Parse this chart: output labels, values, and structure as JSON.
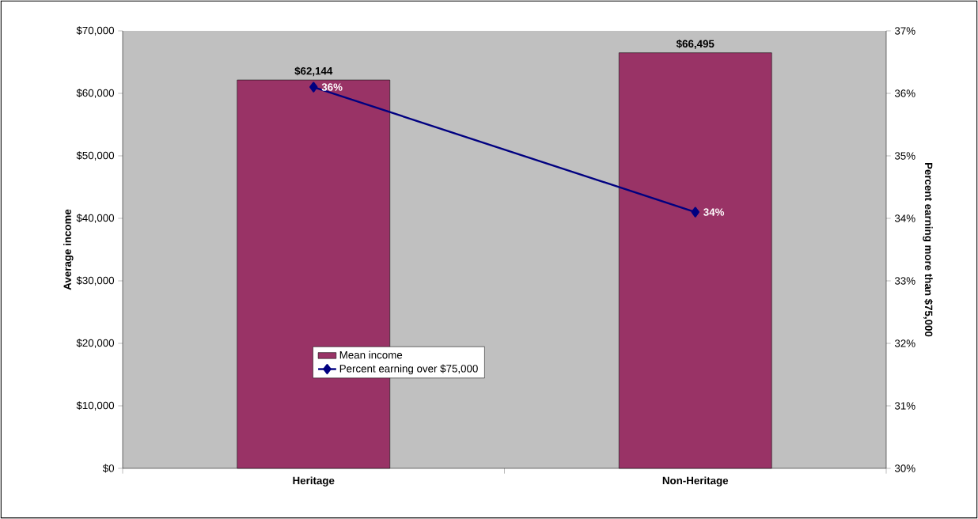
{
  "chart_data": {
    "type": "bar",
    "categories": [
      "Heritage",
      "Non-Heritage"
    ],
    "ylabel": "Average income",
    "y2label": "Percent earning more than $75,000",
    "ylim": [
      0,
      70000
    ],
    "yticks": [
      {
        "value": 0,
        "label": "$0"
      },
      {
        "value": 10000,
        "label": "$10,000"
      },
      {
        "value": 20000,
        "label": "$20,000"
      },
      {
        "value": 30000,
        "label": "$30,000"
      },
      {
        "value": 40000,
        "label": "$40,000"
      },
      {
        "value": 50000,
        "label": "$50,000"
      },
      {
        "value": 60000,
        "label": "$60,000"
      },
      {
        "value": 70000,
        "label": "$70,000"
      }
    ],
    "y2lim": [
      30,
      37
    ],
    "y2ticks": [
      {
        "value": 30,
        "label": "30%"
      },
      {
        "value": 31,
        "label": "31%"
      },
      {
        "value": 32,
        "label": "32%"
      },
      {
        "value": 33,
        "label": "33%"
      },
      {
        "value": 34,
        "label": "34%"
      },
      {
        "value": 35,
        "label": "35%"
      },
      {
        "value": 36,
        "label": "36%"
      },
      {
        "value": 37,
        "label": "37%"
      }
    ],
    "series": [
      {
        "name": "Mean income",
        "color": "#993366",
        "values": [
          62144,
          66495
        ],
        "value_labels": [
          "$62,144",
          "$66,495"
        ]
      },
      {
        "name": "Percent earning over $75,000",
        "type": "line",
        "axis": "y2",
        "color": "#000080",
        "marker": "diamond",
        "values": [
          36.1,
          34.1
        ],
        "value_labels": [
          "36%",
          "34%"
        ]
      }
    ],
    "legend": "bottom",
    "grid": false
  }
}
